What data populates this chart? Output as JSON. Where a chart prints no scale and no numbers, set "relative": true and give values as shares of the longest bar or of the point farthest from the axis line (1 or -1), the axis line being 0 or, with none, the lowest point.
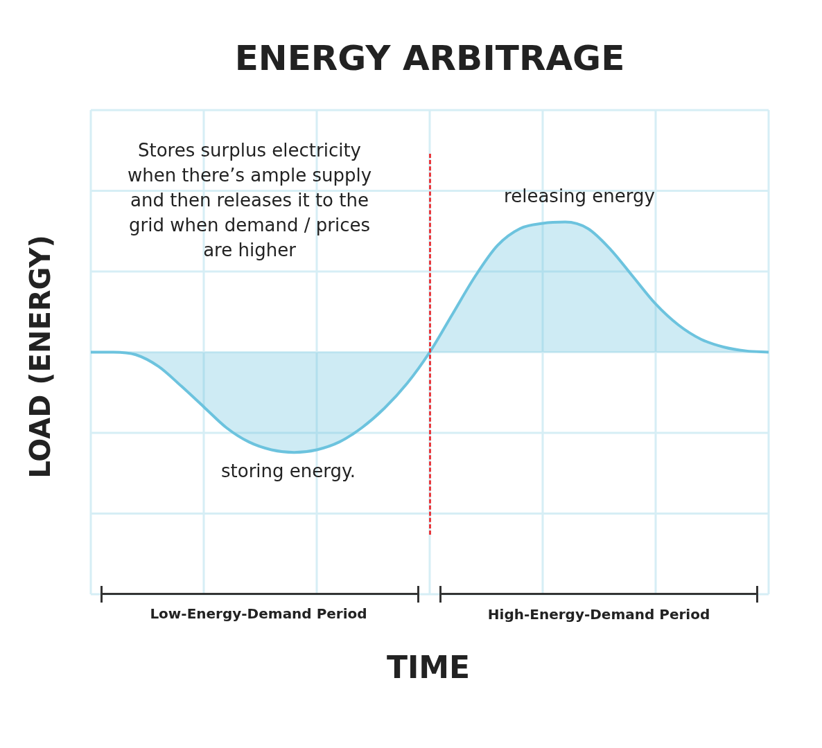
{
  "chart_data": {
    "type": "area",
    "title": "ENERGY ARBITRAGE",
    "ylabel": "LOAD (ENERGY)",
    "relative": true,
    "grid": true,
    "legend": false,
    "categories": [
      null,
      null,
      null,
      null,
      null,
      null,
      null,
      null,
      null,
      null,
      null,
      null,
      null,
      null,
      null,
      null,
      null,
      null,
      null,
      null,
      null,
      null,
      null,
      null,
      null,
      null,
      null,
      null,
      null,
      null,
      null
    ],
    "series": [
      {
        "color": "#6cc3de",
        "values": [
          0,
          0,
          -0.02,
          -0.11,
          -0.26,
          -0.42,
          -0.58,
          -0.69,
          -0.75,
          -0.77,
          -0.75,
          -0.69,
          -0.58,
          -0.43,
          -0.24,
          0,
          0.29,
          0.58,
          0.82,
          0.95,
          0.99,
          1,
          0.95,
          0.79,
          0.58,
          0.37,
          0.21,
          0.1,
          0.04,
          0.01,
          0
        ]
      }
    ],
    "annotations": [
      "Stores surplus electricity when there’s ample supply and then releases it to the grid when demand / prices are higher",
      "releasing energy",
      "storing energy.",
      "Low-Energy-Demand Period",
      "High-Energy-Demand Period",
      "TIME"
    ]
  }
}
